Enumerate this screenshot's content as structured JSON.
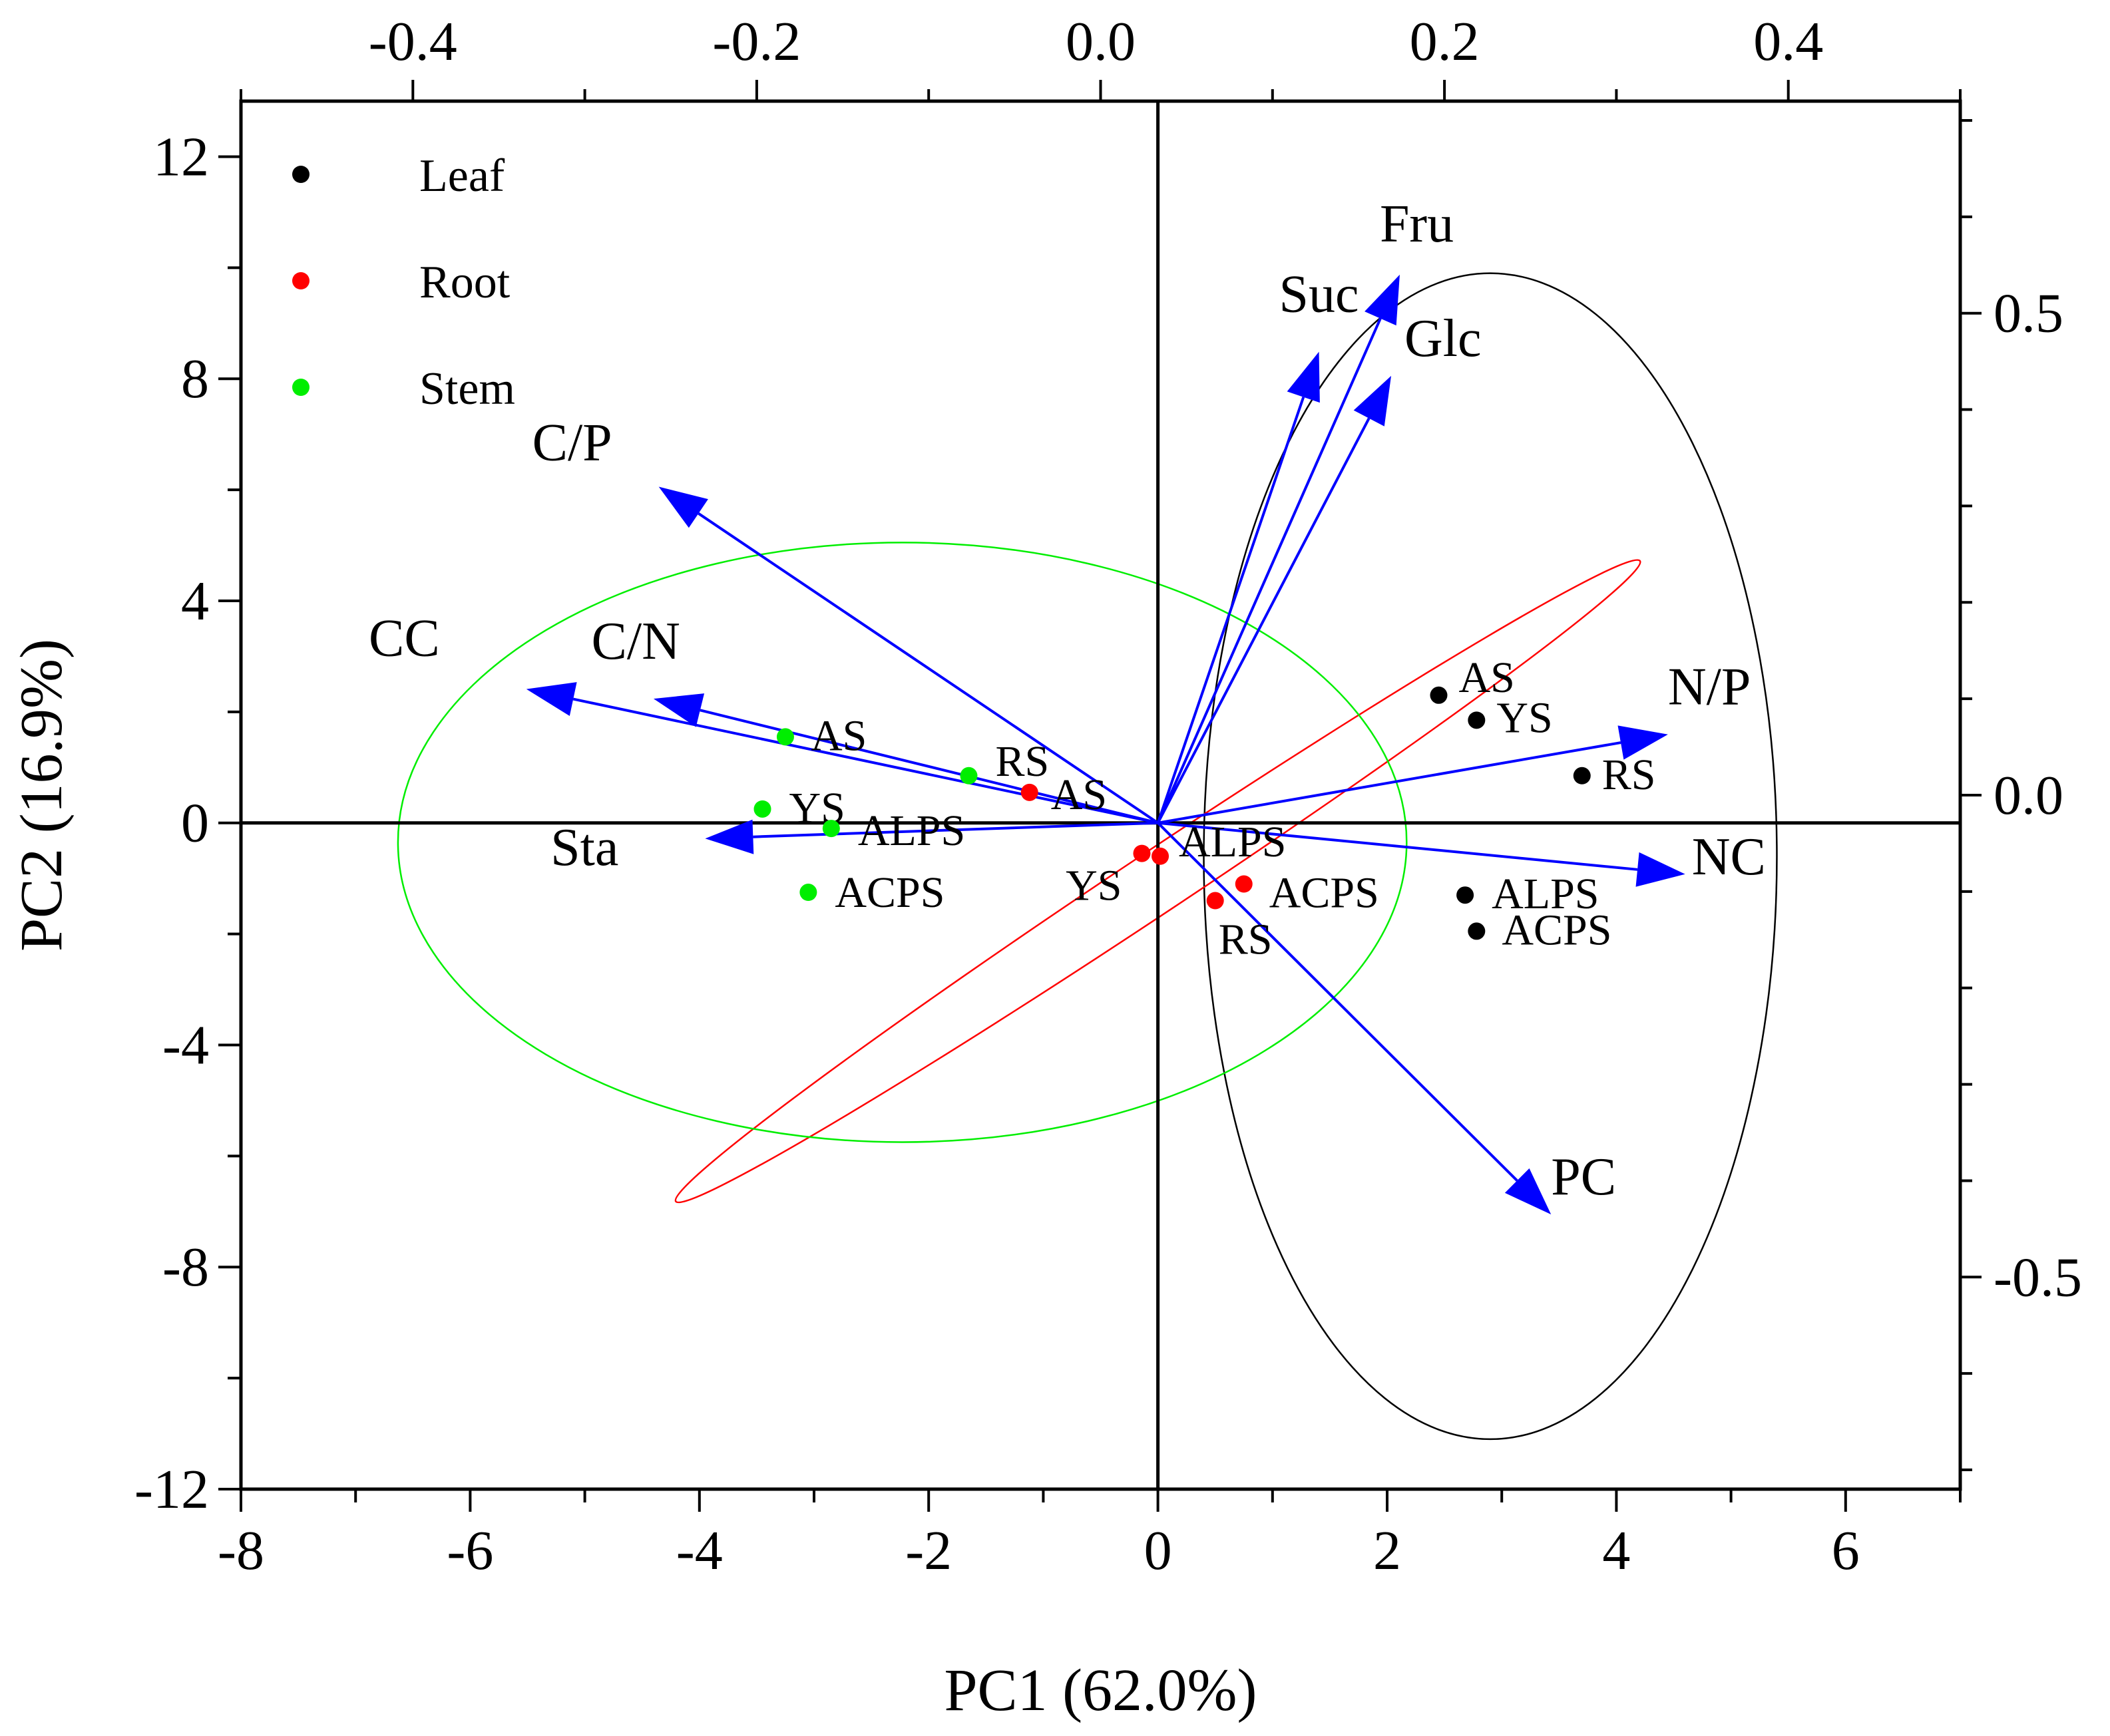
{
  "chart_data": {
    "type": "scatter",
    "subtype": "pca-biplot",
    "title": "",
    "xlabel": "PC1 (62.0%)",
    "ylabel": "PC2 (16.9%)",
    "xlim": [
      -8,
      7
    ],
    "ylim": [
      -12,
      13
    ],
    "x_ticks": [
      "-8",
      "-6",
      "-4",
      "-2",
      "0",
      "2",
      "4",
      "6"
    ],
    "y_ticks": [
      "-12",
      "-8",
      "-4",
      "0",
      "4",
      "8",
      "12"
    ],
    "top_axis": {
      "lim": [
        -0.5,
        0.5
      ],
      "ticks": [
        "-0.4",
        "-0.2",
        "0.0",
        "0.2",
        "0.4"
      ]
    },
    "right_axis": {
      "lim": [
        -0.72,
        0.72
      ],
      "ticks": [
        "-0.5",
        "0.0",
        "0.5"
      ]
    },
    "legend": {
      "position": "top-left",
      "entries": [
        {
          "name": "Leaf",
          "color": "#000000"
        },
        {
          "name": "Root",
          "color": "#ff0000"
        },
        {
          "name": "Stem",
          "color": "#00ee00"
        }
      ]
    },
    "series": [
      {
        "name": "Leaf",
        "color": "#000000",
        "points": [
          {
            "label": "AS",
            "x": 2.45,
            "y": 2.3
          },
          {
            "label": "YS",
            "x": 2.78,
            "y": 1.85
          },
          {
            "label": "RS",
            "x": 3.7,
            "y": 0.85
          },
          {
            "label": "ALPS",
            "x": 2.68,
            "y": -1.3
          },
          {
            "label": "ACPS",
            "x": 2.78,
            "y": -1.95
          }
        ],
        "ellipse": {
          "center": [
            2.9,
            -0.6
          ],
          "semi_axes": [
            2.5,
            10.5
          ],
          "rotation_deg": 0
        }
      },
      {
        "name": "Root",
        "color": "#ff0000",
        "points": [
          {
            "label": "AS",
            "x": -1.12,
            "y": 0.55
          },
          {
            "label": "YS",
            "x": -0.14,
            "y": -0.55
          },
          {
            "label": "ALPS",
            "x": 0.02,
            "y": -0.6
          },
          {
            "label": "ACPS",
            "x": 0.75,
            "y": -1.1
          },
          {
            "label": "RS",
            "x": 0.5,
            "y": -1.4
          }
        ],
        "ellipse": {
          "center": [
            0.0,
            -1.05
          ],
          "semi_axes": [
            5.05,
            0.55
          ],
          "rotation_deg": 33.6
        }
      },
      {
        "name": "Stem",
        "color": "#00ee00",
        "points": [
          {
            "label": "AS",
            "x": -3.25,
            "y": 1.55
          },
          {
            "label": "RS",
            "x": -1.65,
            "y": 0.85
          },
          {
            "label": "YS",
            "x": -3.45,
            "y": 0.25
          },
          {
            "label": "ALPS",
            "x": -2.85,
            "y": -0.1
          },
          {
            "label": "ACPS",
            "x": -3.05,
            "y": -1.25
          }
        ],
        "ellipse": {
          "center": [
            -2.23,
            -0.35
          ],
          "semi_axes": [
            4.4,
            5.4
          ],
          "rotation_deg": 0
        }
      }
    ],
    "loadings": [
      {
        "name": "Fru",
        "x": 0.174,
        "y": 0.54
      },
      {
        "name": "Suc",
        "x": 0.127,
        "y": 0.46
      },
      {
        "name": "Glc",
        "x": 0.169,
        "y": 0.435
      },
      {
        "name": "C/P",
        "x": -0.257,
        "y": 0.32
      },
      {
        "name": "CC",
        "x": -0.334,
        "y": 0.11
      },
      {
        "name": "C/N",
        "x": -0.26,
        "y": 0.1
      },
      {
        "name": "Sta",
        "x": -0.23,
        "y": -0.045
      },
      {
        "name": "N/P",
        "x": 0.33,
        "y": 0.063
      },
      {
        "name": "NC",
        "x": 0.34,
        "y": -0.082
      },
      {
        "name": "PC",
        "x": 0.262,
        "y": -0.435
      }
    ],
    "loading_color": "#0000ff"
  }
}
